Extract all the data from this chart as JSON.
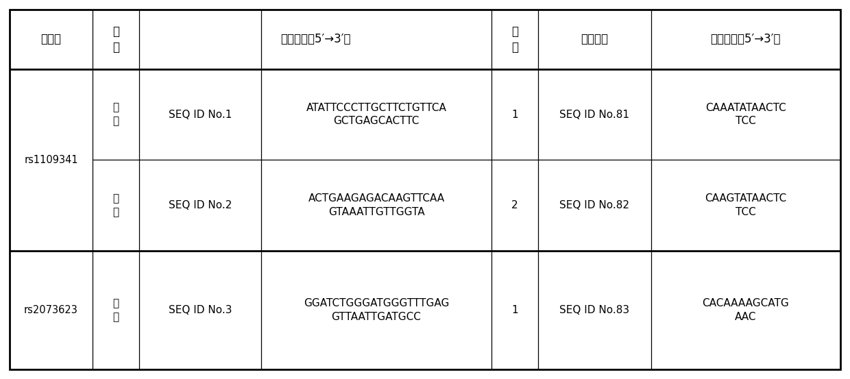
{
  "bg_color": "#ffffff",
  "border_color": "#000000",
  "text_color": "#000000",
  "thick_lw": 2.0,
  "thin_lw": 0.9,
  "header": {
    "col0": "序列号",
    "col1": "引\n物",
    "col23": "引物序列（5′→3′）",
    "col4": "探\n针",
    "col5": "探针序列",
    "col6": "探针序列（5′→3′）"
  },
  "rows": [
    {
      "seq_id": "rs1109341",
      "span": 2,
      "sub_rows": [
        {
          "primer_dir": "上\n游",
          "seq_id_label": "SEQ ID No.1",
          "primer_seq": "ATATTCCCTTGCTTCTGTTCA\nGCTGAGCACTTC",
          "probe_num": "1",
          "probe_id": "SEQ ID No.81",
          "probe_seq": "CAAATATAACTC\nTCC"
        },
        {
          "primer_dir": "下\n游",
          "seq_id_label": "SEQ ID No.2",
          "primer_seq": "ACTGAAGAGACAAGTTCAA\nGTAAATTGTTGGTA",
          "probe_num": "2",
          "probe_id": "SEQ ID No.82",
          "probe_seq": "CAAGTATAACTC\nTCC"
        }
      ]
    },
    {
      "seq_id": "rs2073623",
      "span": 1,
      "sub_rows": [
        {
          "primer_dir": "上\n游",
          "seq_id_label": "SEQ ID No.3",
          "primer_seq": "GGATCTGGGATGGGTTTGAG\nGTTAATTGATGCC",
          "probe_num": "1",
          "probe_id": "SEQ ID No.83",
          "probe_seq": "CACAAAAGCATG\nAAC"
        }
      ]
    }
  ]
}
